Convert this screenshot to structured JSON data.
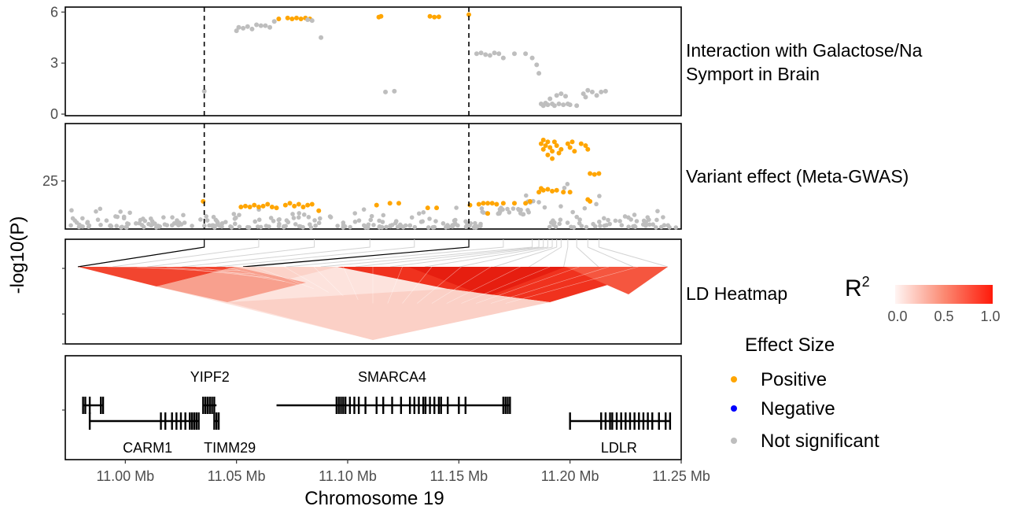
{
  "chart_data": [
    {
      "type": "scatter",
      "panel_label": "Interaction with Galactose/Na Symport in Brain",
      "panel_label_lines": [
        "Interaction with Galactose/Na",
        "Symport in Brain"
      ],
      "ylim": [
        0,
        6.2
      ],
      "y_ticks": [
        "0",
        "3",
        "6"
      ],
      "y_tick_values": [
        0,
        3,
        6
      ],
      "points": [
        {
          "x": 11.0355,
          "y": 1.35,
          "effect": "Not significant"
        },
        {
          "x": 11.05,
          "y": 4.9,
          "effect": "Not significant"
        },
        {
          "x": 11.051,
          "y": 5.1,
          "effect": "Not significant"
        },
        {
          "x": 11.053,
          "y": 5.05,
          "effect": "Not significant"
        },
        {
          "x": 11.055,
          "y": 5.15,
          "effect": "Not significant"
        },
        {
          "x": 11.057,
          "y": 5.0,
          "effect": "Not significant"
        },
        {
          "x": 11.059,
          "y": 5.25,
          "effect": "Not significant"
        },
        {
          "x": 11.061,
          "y": 5.2,
          "effect": "Not significant"
        },
        {
          "x": 11.063,
          "y": 5.2,
          "effect": "Not significant"
        },
        {
          "x": 11.065,
          "y": 5.1,
          "effect": "Not significant"
        },
        {
          "x": 11.067,
          "y": 5.45,
          "effect": "Not significant"
        },
        {
          "x": 11.069,
          "y": 5.6,
          "effect": "Positive"
        },
        {
          "x": 11.073,
          "y": 5.65,
          "effect": "Positive"
        },
        {
          "x": 11.075,
          "y": 5.6,
          "effect": "Positive"
        },
        {
          "x": 11.077,
          "y": 5.65,
          "effect": "Positive"
        },
        {
          "x": 11.079,
          "y": 5.6,
          "effect": "Positive"
        },
        {
          "x": 11.081,
          "y": 5.65,
          "effect": "Positive"
        },
        {
          "x": 11.083,
          "y": 5.6,
          "effect": "Positive"
        },
        {
          "x": 11.082,
          "y": 5.55,
          "effect": "Not significant"
        },
        {
          "x": 11.084,
          "y": 5.5,
          "effect": "Not significant"
        },
        {
          "x": 11.088,
          "y": 4.5,
          "effect": "Not significant"
        },
        {
          "x": 11.114,
          "y": 5.7,
          "effect": "Positive"
        },
        {
          "x": 11.115,
          "y": 5.75,
          "effect": "Positive"
        },
        {
          "x": 11.117,
          "y": 1.3,
          "effect": "Not significant"
        },
        {
          "x": 11.121,
          "y": 1.35,
          "effect": "Not significant"
        },
        {
          "x": 11.137,
          "y": 5.75,
          "effect": "Positive"
        },
        {
          "x": 11.139,
          "y": 5.7,
          "effect": "Positive"
        },
        {
          "x": 11.141,
          "y": 5.72,
          "effect": "Positive"
        },
        {
          "x": 11.1545,
          "y": 5.85,
          "effect": "Positive"
        },
        {
          "x": 11.158,
          "y": 3.55,
          "effect": "Not significant"
        },
        {
          "x": 11.16,
          "y": 3.6,
          "effect": "Not significant"
        },
        {
          "x": 11.162,
          "y": 3.5,
          "effect": "Not significant"
        },
        {
          "x": 11.164,
          "y": 3.45,
          "effect": "Not significant"
        },
        {
          "x": 11.166,
          "y": 3.6,
          "effect": "Not significant"
        },
        {
          "x": 11.168,
          "y": 3.55,
          "effect": "Not significant"
        },
        {
          "x": 11.17,
          "y": 3.3,
          "effect": "Not significant"
        },
        {
          "x": 11.175,
          "y": 3.55,
          "effect": "Not significant"
        },
        {
          "x": 11.18,
          "y": 3.55,
          "effect": "Not significant"
        },
        {
          "x": 11.183,
          "y": 3.3,
          "effect": "Not significant"
        },
        {
          "x": 11.185,
          "y": 2.9,
          "effect": "Not significant"
        },
        {
          "x": 11.186,
          "y": 2.4,
          "effect": "Not significant"
        },
        {
          "x": 11.187,
          "y": 0.6,
          "effect": "Not significant"
        },
        {
          "x": 11.188,
          "y": 0.5,
          "effect": "Not significant"
        },
        {
          "x": 11.189,
          "y": 0.65,
          "effect": "Not significant"
        },
        {
          "x": 11.19,
          "y": 0.55,
          "effect": "Not significant"
        },
        {
          "x": 11.191,
          "y": 0.9,
          "effect": "Not significant"
        },
        {
          "x": 11.192,
          "y": 0.6,
          "effect": "Not significant"
        },
        {
          "x": 11.193,
          "y": 0.5,
          "effect": "Not significant"
        },
        {
          "x": 11.194,
          "y": 1.1,
          "effect": "Not significant"
        },
        {
          "x": 11.195,
          "y": 0.6,
          "effect": "Not significant"
        },
        {
          "x": 11.196,
          "y": 1.2,
          "effect": "Not significant"
        },
        {
          "x": 11.197,
          "y": 0.55,
          "effect": "Not significant"
        },
        {
          "x": 11.198,
          "y": 1.05,
          "effect": "Not significant"
        },
        {
          "x": 11.199,
          "y": 0.6,
          "effect": "Not significant"
        },
        {
          "x": 11.2,
          "y": 0.55,
          "effect": "Not significant"
        },
        {
          "x": 11.203,
          "y": 0.5,
          "effect": "Not significant"
        },
        {
          "x": 11.206,
          "y": 1.2,
          "effect": "Not significant"
        },
        {
          "x": 11.207,
          "y": 1.0,
          "effect": "Not significant"
        },
        {
          "x": 11.208,
          "y": 1.4,
          "effect": "Not significant"
        },
        {
          "x": 11.21,
          "y": 1.3,
          "effect": "Not significant"
        },
        {
          "x": 11.212,
          "y": 1.1,
          "effect": "Not significant"
        },
        {
          "x": 11.214,
          "y": 1.3,
          "effect": "Not significant"
        },
        {
          "x": 11.216,
          "y": 1.35,
          "effect": "Not significant"
        }
      ]
    },
    {
      "type": "scatter",
      "panel_label": "Variant effect (Meta-GWAS)",
      "ylim": [
        0,
        55
      ],
      "y_ticks": [
        "25"
      ],
      "y_tick_values": [
        25
      ],
      "positive_points": [
        {
          "x": 11.035,
          "y": 14
        },
        {
          "x": 11.052,
          "y": 11
        },
        {
          "x": 11.054,
          "y": 11.5
        },
        {
          "x": 11.056,
          "y": 11
        },
        {
          "x": 11.058,
          "y": 12
        },
        {
          "x": 11.06,
          "y": 11
        },
        {
          "x": 11.062,
          "y": 11.5
        },
        {
          "x": 11.064,
          "y": 12.5
        },
        {
          "x": 11.066,
          "y": 11
        },
        {
          "x": 11.068,
          "y": 10.5
        },
        {
          "x": 11.072,
          "y": 12
        },
        {
          "x": 11.074,
          "y": 13
        },
        {
          "x": 11.076,
          "y": 11.5
        },
        {
          "x": 11.078,
          "y": 12.5
        },
        {
          "x": 11.08,
          "y": 11
        },
        {
          "x": 11.082,
          "y": 12
        },
        {
          "x": 11.084,
          "y": 12.5
        },
        {
          "x": 11.087,
          "y": 9
        },
        {
          "x": 11.113,
          "y": 12
        },
        {
          "x": 11.119,
          "y": 13
        },
        {
          "x": 11.123,
          "y": 13
        },
        {
          "x": 11.136,
          "y": 10.5
        },
        {
          "x": 11.14,
          "y": 10.5
        },
        {
          "x": 11.155,
          "y": 12
        },
        {
          "x": 11.159,
          "y": 12.5
        },
        {
          "x": 11.161,
          "y": 13
        },
        {
          "x": 11.163,
          "y": 13
        },
        {
          "x": 11.165,
          "y": 13
        },
        {
          "x": 11.167,
          "y": 12.5
        },
        {
          "x": 11.17,
          "y": 13
        },
        {
          "x": 11.163,
          "y": 7.5
        },
        {
          "x": 11.175,
          "y": 13
        },
        {
          "x": 11.18,
          "y": 13
        },
        {
          "x": 11.182,
          "y": 14
        },
        {
          "x": 11.186,
          "y": 19
        },
        {
          "x": 11.187,
          "y": 21
        },
        {
          "x": 11.188,
          "y": 20
        },
        {
          "x": 11.19,
          "y": 20.5
        },
        {
          "x": 11.192,
          "y": 19.5
        },
        {
          "x": 11.194,
          "y": 20
        },
        {
          "x": 11.197,
          "y": 19
        },
        {
          "x": 11.2,
          "y": 19
        },
        {
          "x": 11.187,
          "y": 45
        },
        {
          "x": 11.188,
          "y": 47
        },
        {
          "x": 11.189,
          "y": 44
        },
        {
          "x": 11.19,
          "y": 46
        },
        {
          "x": 11.191,
          "y": 43
        },
        {
          "x": 11.192,
          "y": 41
        },
        {
          "x": 11.193,
          "y": 46
        },
        {
          "x": 11.194,
          "y": 44
        },
        {
          "x": 11.195,
          "y": 40
        },
        {
          "x": 11.196,
          "y": 42
        },
        {
          "x": 11.19,
          "y": 39
        },
        {
          "x": 11.192,
          "y": 37
        },
        {
          "x": 11.188,
          "y": 42
        },
        {
          "x": 11.199,
          "y": 45
        },
        {
          "x": 11.2,
          "y": 43
        },
        {
          "x": 11.201,
          "y": 46
        },
        {
          "x": 11.202,
          "y": 41
        },
        {
          "x": 11.205,
          "y": 45
        },
        {
          "x": 11.207,
          "y": 44
        },
        {
          "x": 11.208,
          "y": 42
        },
        {
          "x": 11.209,
          "y": 29
        },
        {
          "x": 11.211,
          "y": 28.5
        },
        {
          "x": 11.213,
          "y": 29
        },
        {
          "x": 11.208,
          "y": 15
        },
        {
          "x": 11.209,
          "y": 14
        }
      ],
      "ns_counts_by_note": "grey background of not significant variants spanning the region with -log10(P) mostly below 12"
    },
    {
      "type": "heatmap",
      "panel_label": "LD Heatmap",
      "legend_title": "R",
      "legend_title_superscript": "2",
      "legend_ticks": [
        "0.0",
        "0.5",
        "1.0"
      ],
      "legend_range": [
        0,
        1
      ],
      "color_low": "#fff5f3",
      "color_high": "#ff0000"
    },
    {
      "type": "gene_track",
      "genes": [
        {
          "name": "",
          "start": 10.981,
          "end": 10.99,
          "row": 0,
          "exons": [
            10.981,
            10.982,
            10.984,
            10.989,
            10.99
          ]
        },
        {
          "name": "CARM1",
          "start": 10.984,
          "end": 11.033,
          "row": 1,
          "label_pos": "below",
          "exons": [
            10.984,
            11.016,
            11.018,
            11.021,
            11.023,
            11.025,
            11.027,
            11.029,
            11.03,
            11.031,
            11.032,
            11.033
          ]
        },
        {
          "name": "YIPF2",
          "start": 11.035,
          "end": 11.041,
          "row": 0,
          "label_pos": "above",
          "exons": [
            11.035,
            11.036,
            11.037,
            11.038,
            11.039,
            11.04
          ]
        },
        {
          "name": "TIMM29",
          "start": 11.04,
          "end": 11.042,
          "row": 1,
          "label_pos": "below",
          "exons": [
            11.04,
            11.041,
            11.042
          ]
        },
        {
          "name": "SMARCA4",
          "start": 11.068,
          "end": 11.173,
          "row": 0,
          "label_pos": "above",
          "exons": [
            11.095,
            11.096,
            11.097,
            11.098,
            11.099,
            11.101,
            11.103,
            11.105,
            11.108,
            11.113,
            11.116,
            11.12,
            11.124,
            11.128,
            11.13,
            11.132,
            11.134,
            11.135,
            11.137,
            11.139,
            11.141,
            11.142,
            11.145,
            11.15,
            11.153,
            11.17,
            11.171,
            11.172,
            11.173
          ]
        },
        {
          "name": "LDLR",
          "start": 11.2,
          "end": 11.245,
          "row": 1,
          "label_pos": "below",
          "exons": [
            11.2,
            11.214,
            11.216,
            11.218,
            11.219,
            11.221,
            11.223,
            11.225,
            11.227,
            11.229,
            11.231,
            11.233,
            11.235,
            11.237,
            11.24,
            11.243,
            11.245
          ]
        }
      ]
    }
  ],
  "axes": {
    "y_title": "-log10(P)",
    "x_title": "Chromosome 19",
    "x_ticks": [
      "11.00 Mb",
      "11.05 Mb",
      "11.10 Mb",
      "11.15 Mb",
      "11.20 Mb",
      "11.25 Mb"
    ],
    "x_tick_values": [
      11.0,
      11.05,
      11.1,
      11.15,
      11.2,
      11.25
    ],
    "xlim": [
      10.973,
      11.25
    ],
    "dashed_lines": [
      11.0355,
      11.1545
    ]
  },
  "legend": {
    "title": "Effect Size",
    "items": [
      {
        "label": "Positive",
        "color": "#ffa500"
      },
      {
        "label": "Negative",
        "color": "#0000ff"
      },
      {
        "label": "Not significant",
        "color": "#bebebe"
      }
    ]
  }
}
